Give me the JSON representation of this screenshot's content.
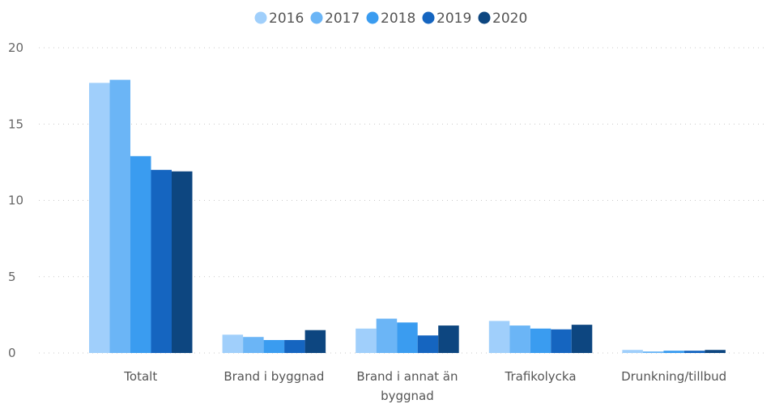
{
  "chart_data": {
    "type": "bar",
    "categories": [
      [
        "Totalt"
      ],
      [
        "Brand i byggnad"
      ],
      [
        "Brand i annat än",
        "byggnad"
      ],
      [
        "Trafikolycka"
      ],
      [
        "Drunkning/tillbud"
      ]
    ],
    "series": [
      {
        "name": "2016",
        "color": "#a0cffb",
        "values": [
          17.7,
          1.2,
          1.6,
          2.1,
          0.2
        ]
      },
      {
        "name": "2017",
        "color": "#6bb5f6",
        "values": [
          17.9,
          1.05,
          2.25,
          1.8,
          0.1
        ]
      },
      {
        "name": "2018",
        "color": "#3a9cf0",
        "values": [
          12.9,
          0.85,
          2.0,
          1.6,
          0.15
        ]
      },
      {
        "name": "2019",
        "color": "#1565c0",
        "values": [
          12.0,
          0.85,
          1.15,
          1.55,
          0.15
        ]
      },
      {
        "name": "2020",
        "color": "#0d4680",
        "values": [
          11.9,
          1.5,
          1.8,
          1.85,
          0.2
        ]
      }
    ],
    "y_ticks": [
      0,
      5,
      10,
      15,
      20
    ],
    "ylim": [
      0,
      20
    ],
    "grid": true,
    "legend_position": "top-center"
  }
}
